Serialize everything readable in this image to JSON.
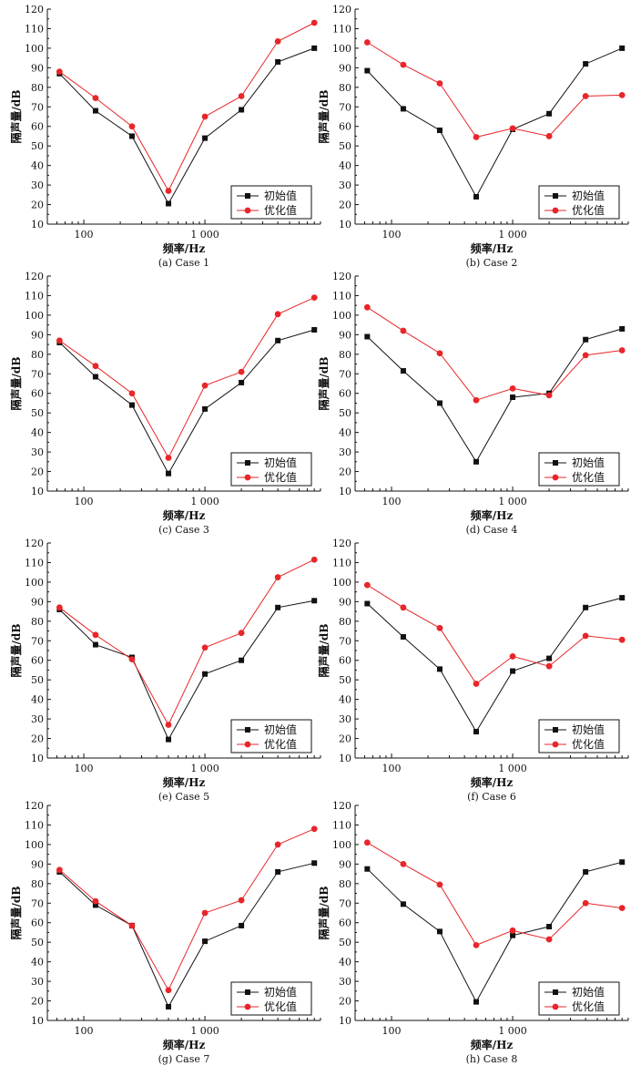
{
  "figure": {
    "series_labels": {
      "initial": "初始值",
      "optimized": "优化值"
    },
    "colors": {
      "initial": "#111111",
      "optimized": "#e8262a",
      "axis": "#111111"
    }
  },
  "chart_data": [
    {
      "caption": "(a) Case 1",
      "type": "line",
      "xlabel": "频率/Hz",
      "ylabel": "隔声量/dB",
      "xscale": "log",
      "xticks": [
        "100",
        "1 000"
      ],
      "ylim": [
        10,
        120
      ],
      "ytick_step": 10,
      "legend": "bottom-right",
      "x": [
        63,
        125,
        250,
        500,
        1000,
        2000,
        4000,
        8000
      ],
      "series": [
        {
          "name": "初始值",
          "values": [
            87,
            68,
            55,
            20.5,
            54,
            68.5,
            93,
            100
          ]
        },
        {
          "name": "优化值",
          "values": [
            88,
            74.5,
            60,
            27,
            65,
            75.5,
            103.5,
            113
          ]
        }
      ]
    },
    {
      "caption": "(b) Case 2",
      "type": "line",
      "xlabel": "频率/Hz",
      "ylabel": "隔声量/dB",
      "xscale": "log",
      "xticks": [
        "100",
        "1 000"
      ],
      "ylim": [
        10,
        120
      ],
      "ytick_step": 10,
      "legend": "bottom-right",
      "x": [
        63,
        125,
        250,
        500,
        1000,
        2000,
        4000,
        8000
      ],
      "series": [
        {
          "name": "初始值",
          "values": [
            88.5,
            69,
            58,
            24,
            58.5,
            66.5,
            92,
            100
          ]
        },
        {
          "name": "优化值",
          "values": [
            103,
            91.5,
            82,
            54.5,
            59,
            55,
            75.5,
            76
          ]
        }
      ]
    },
    {
      "caption": "(c) Case 3",
      "type": "line",
      "xlabel": "频率/Hz",
      "ylabel": "隔声量/dB",
      "xscale": "log",
      "xticks": [
        "100",
        "1 000"
      ],
      "ylim": [
        10,
        120
      ],
      "ytick_step": 10,
      "legend": "bottom-right",
      "x": [
        63,
        125,
        250,
        500,
        1000,
        2000,
        4000,
        8000
      ],
      "series": [
        {
          "name": "初始值",
          "values": [
            86,
            68.5,
            54,
            19,
            52,
            65.5,
            87,
            92.5
          ]
        },
        {
          "name": "优化值",
          "values": [
            87,
            74,
            60,
            27,
            64,
            71,
            100.5,
            109
          ]
        }
      ]
    },
    {
      "caption": "(d) Case 4",
      "type": "line",
      "xlabel": "频率/Hz",
      "ylabel": "隔声量/dB",
      "xscale": "log",
      "xticks": [
        "100",
        "1 000"
      ],
      "ylim": [
        10,
        120
      ],
      "ytick_step": 10,
      "legend": "bottom-right",
      "x": [
        63,
        125,
        250,
        500,
        1000,
        2000,
        4000,
        8000
      ],
      "series": [
        {
          "name": "初始值",
          "values": [
            89,
            71.5,
            55,
            25,
            58,
            60,
            87.5,
            93
          ]
        },
        {
          "name": "优化值",
          "values": [
            104,
            92,
            80.5,
            56.5,
            62.5,
            59,
            79.5,
            82
          ]
        }
      ]
    },
    {
      "caption": "(e) Case 5",
      "type": "line",
      "xlabel": "频率/Hz",
      "ylabel": "隔声量/dB",
      "xscale": "log",
      "xticks": [
        "100",
        "1 000"
      ],
      "ylim": [
        10,
        120
      ],
      "ytick_step": 10,
      "legend": "bottom-right",
      "x": [
        63,
        125,
        250,
        500,
        1000,
        2000,
        4000,
        8000
      ],
      "series": [
        {
          "name": "初始值",
          "values": [
            86,
            68,
            61.5,
            19.5,
            53,
            60,
            87,
            90.5
          ]
        },
        {
          "name": "优化值",
          "values": [
            87,
            73,
            60.5,
            27,
            66.5,
            74,
            102.5,
            111.5
          ]
        }
      ]
    },
    {
      "caption": "(f) Case 6",
      "type": "line",
      "xlabel": "频率/Hz",
      "ylabel": "隔声量/dB",
      "xscale": "log",
      "xticks": [
        "100",
        "1 000"
      ],
      "ylim": [
        10,
        120
      ],
      "ytick_step": 10,
      "legend": "bottom-right",
      "x": [
        63,
        125,
        250,
        500,
        1000,
        2000,
        4000,
        8000
      ],
      "series": [
        {
          "name": "初始值",
          "values": [
            89,
            72,
            55.5,
            23.5,
            54.5,
            61,
            87,
            92
          ]
        },
        {
          "name": "优化值",
          "values": [
            98.5,
            87,
            76.5,
            48,
            62,
            57,
            72.5,
            70.5
          ]
        }
      ]
    },
    {
      "caption": "(g) Case 7",
      "type": "line",
      "xlabel": "频率/Hz",
      "ylabel": "隔声量/dB",
      "xscale": "log",
      "xticks": [
        "100",
        "1 000"
      ],
      "ylim": [
        10,
        120
      ],
      "ytick_step": 10,
      "legend": "bottom-right",
      "x": [
        63,
        125,
        250,
        500,
        1000,
        2000,
        4000,
        8000
      ],
      "series": [
        {
          "name": "初始值",
          "values": [
            86,
            69,
            58.5,
            17,
            50.5,
            58.5,
            86,
            90.5
          ]
        },
        {
          "name": "优化值",
          "values": [
            87,
            71,
            58.5,
            25.5,
            65,
            71.5,
            100,
            108
          ]
        }
      ]
    },
    {
      "caption": "(h) Case 8",
      "type": "line",
      "xlabel": "频率/Hz",
      "ylabel": "隔声量/dB",
      "xscale": "log",
      "xticks": [
        "100",
        "1 000"
      ],
      "ylim": [
        10,
        120
      ],
      "ytick_step": 10,
      "legend": "bottom-right",
      "x": [
        63,
        125,
        250,
        500,
        1000,
        2000,
        4000,
        8000
      ],
      "series": [
        {
          "name": "初始值",
          "values": [
            87.5,
            69.5,
            55.5,
            19.5,
            53.5,
            58,
            86,
            91
          ]
        },
        {
          "name": "优化值",
          "values": [
            101,
            90,
            79.5,
            48.5,
            56,
            51.5,
            70,
            67.5
          ]
        }
      ]
    }
  ]
}
